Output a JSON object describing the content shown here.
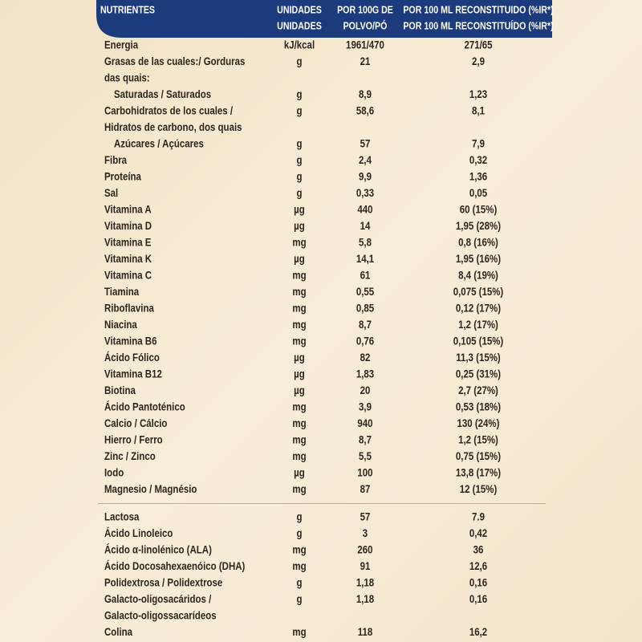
{
  "table": {
    "header": {
      "nutrient": "NUTRIENTES",
      "units": [
        "UNIDADES",
        "UNIDADES"
      ],
      "per100g": [
        "POR 100G DE",
        "POLVO/PÓ"
      ],
      "per100ml": [
        "POR 100 ML RECONSTITUIDO (%IR*)",
        "POR 100 ML RECONSTITUÍDO (%IR*)"
      ]
    },
    "sections": [
      [
        {
          "name": "Energia",
          "unit": "kJ/kcal",
          "per100g": "1961/470",
          "per100ml": "271/65"
        },
        {
          "name": "Grasas de las cuales:/ Gorduras",
          "unit": "g",
          "per100g": "21",
          "per100ml": "2,9"
        },
        {
          "name": "das quais:"
        },
        {
          "name": "Saturadas / Saturados",
          "indent": true,
          "unit": "g",
          "per100g": "8,9",
          "per100ml": "1,23"
        },
        {
          "name": "Carbohidratos de los cuales /",
          "unit": "g",
          "per100g": "58,6",
          "per100ml": "8,1"
        },
        {
          "name": "Hidratos de carbono, dos quais"
        },
        {
          "name": "Azúcares / Açúcares",
          "indent": true,
          "unit": "g",
          "per100g": "57",
          "per100ml": "7,9"
        },
        {
          "name": "Fibra",
          "unit": "g",
          "per100g": "2,4",
          "per100ml": "0,32"
        },
        {
          "name": "Proteína",
          "unit": "g",
          "per100g": "9,9",
          "per100ml": "1,36"
        },
        {
          "name": "Sal",
          "unit": "g",
          "per100g": "0,33",
          "per100ml": "0,05"
        },
        {
          "name": "Vitamina A",
          "unit": "µg",
          "per100g": "440",
          "per100ml": "60 (15%)"
        },
        {
          "name": "Vitamina D",
          "unit": "µg",
          "per100g": "14",
          "per100ml": "1,95 (28%)"
        },
        {
          "name": "Vitamina E",
          "unit": "mg",
          "per100g": "5,8",
          "per100ml": "0,8 (16%)"
        },
        {
          "name": "Vitamina K",
          "unit": "µg",
          "per100g": "14,1",
          "per100ml": "1,95 (16%)"
        },
        {
          "name": "Vitamina C",
          "unit": "mg",
          "per100g": "61",
          "per100ml": "8,4 (19%)"
        },
        {
          "name": "Tiamina",
          "unit": "mg",
          "per100g": "0,55",
          "per100ml": "0,075 (15%)"
        },
        {
          "name": "Riboflavina",
          "unit": "mg",
          "per100g": "0,85",
          "per100ml": "0,12 (17%)"
        },
        {
          "name": "Niacina",
          "unit": "mg",
          "per100g": "8,7",
          "per100ml": "1,2 (17%)"
        },
        {
          "name": "Vitamina B6",
          "unit": "mg",
          "per100g": "0,76",
          "per100ml": "0,105 (15%)"
        },
        {
          "name": "Ácido Fólico",
          "unit": "µg",
          "per100g": "82",
          "per100ml": "11,3 (15%)"
        },
        {
          "name": "Vitamina B12",
          "unit": "µg",
          "per100g": "1,83",
          "per100ml": "0,25 (31%)"
        },
        {
          "name": "Biotina",
          "unit": "µg",
          "per100g": "20",
          "per100ml": "2,7 (27%)"
        },
        {
          "name": "Ácido Pantoténico",
          "unit": "mg",
          "per100g": "3,9",
          "per100ml": "0,53 (18%)"
        },
        {
          "name": "Calcio / Cálcio",
          "unit": "mg",
          "per100g": "940",
          "per100ml": "130 (24%)"
        },
        {
          "name": "Hierro / Ferro",
          "unit": "mg",
          "per100g": "8,7",
          "per100ml": "1,2 (15%)"
        },
        {
          "name": "Zinc / Zinco",
          "unit": "mg",
          "per100g": "5,5",
          "per100ml": "0,75 (15%)"
        },
        {
          "name": "Iodo",
          "unit": "µg",
          "per100g": "100",
          "per100ml": "13,8 (17%)"
        },
        {
          "name": "Magnesio / Magnésio",
          "unit": "mg",
          "per100g": "87",
          "per100ml": "12 (15%)"
        }
      ],
      [
        {
          "name": "Lactosa",
          "unit": "g",
          "per100g": "57",
          "per100ml": "7.9"
        },
        {
          "name": "Ácido Linoleico",
          "unit": "g",
          "per100g": "3",
          "per100ml": "0,42"
        },
        {
          "name": "Ácido α-linolénico (ALA)",
          "unit": "mg",
          "per100g": "260",
          "per100ml": "36"
        },
        {
          "name": "Ácido Docosahexaenóico (DHA)",
          "unit": "mg",
          "per100g": "91",
          "per100ml": "12,6"
        },
        {
          "name": "Polidextrosa / Polidextrose",
          "unit": "g",
          "per100g": "1,18",
          "per100ml": "0,16"
        },
        {
          "name": "Galacto-oligosacáridos /",
          "unit": "g",
          "per100g": "1,18",
          "per100ml": "0,16"
        },
        {
          "name": "Galacto-oligossacarídeos"
        },
        {
          "name": "Colina",
          "unit": "mg",
          "per100g": "118",
          "per100ml": "16,2"
        }
      ]
    ]
  }
}
